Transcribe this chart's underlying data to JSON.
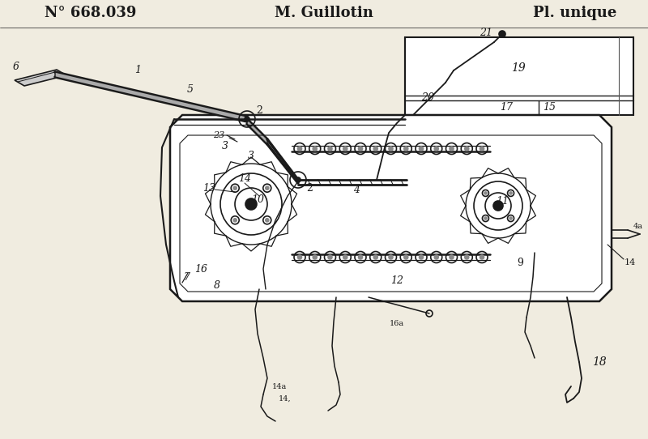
{
  "title_left": "N° 668.039",
  "title_center": "M. Guillotin",
  "title_right": "Pl. unique",
  "bg_color": "#f0ece0",
  "line_color": "#1a1a1a",
  "title_fontsize": 13,
  "label_fontsize": 9
}
